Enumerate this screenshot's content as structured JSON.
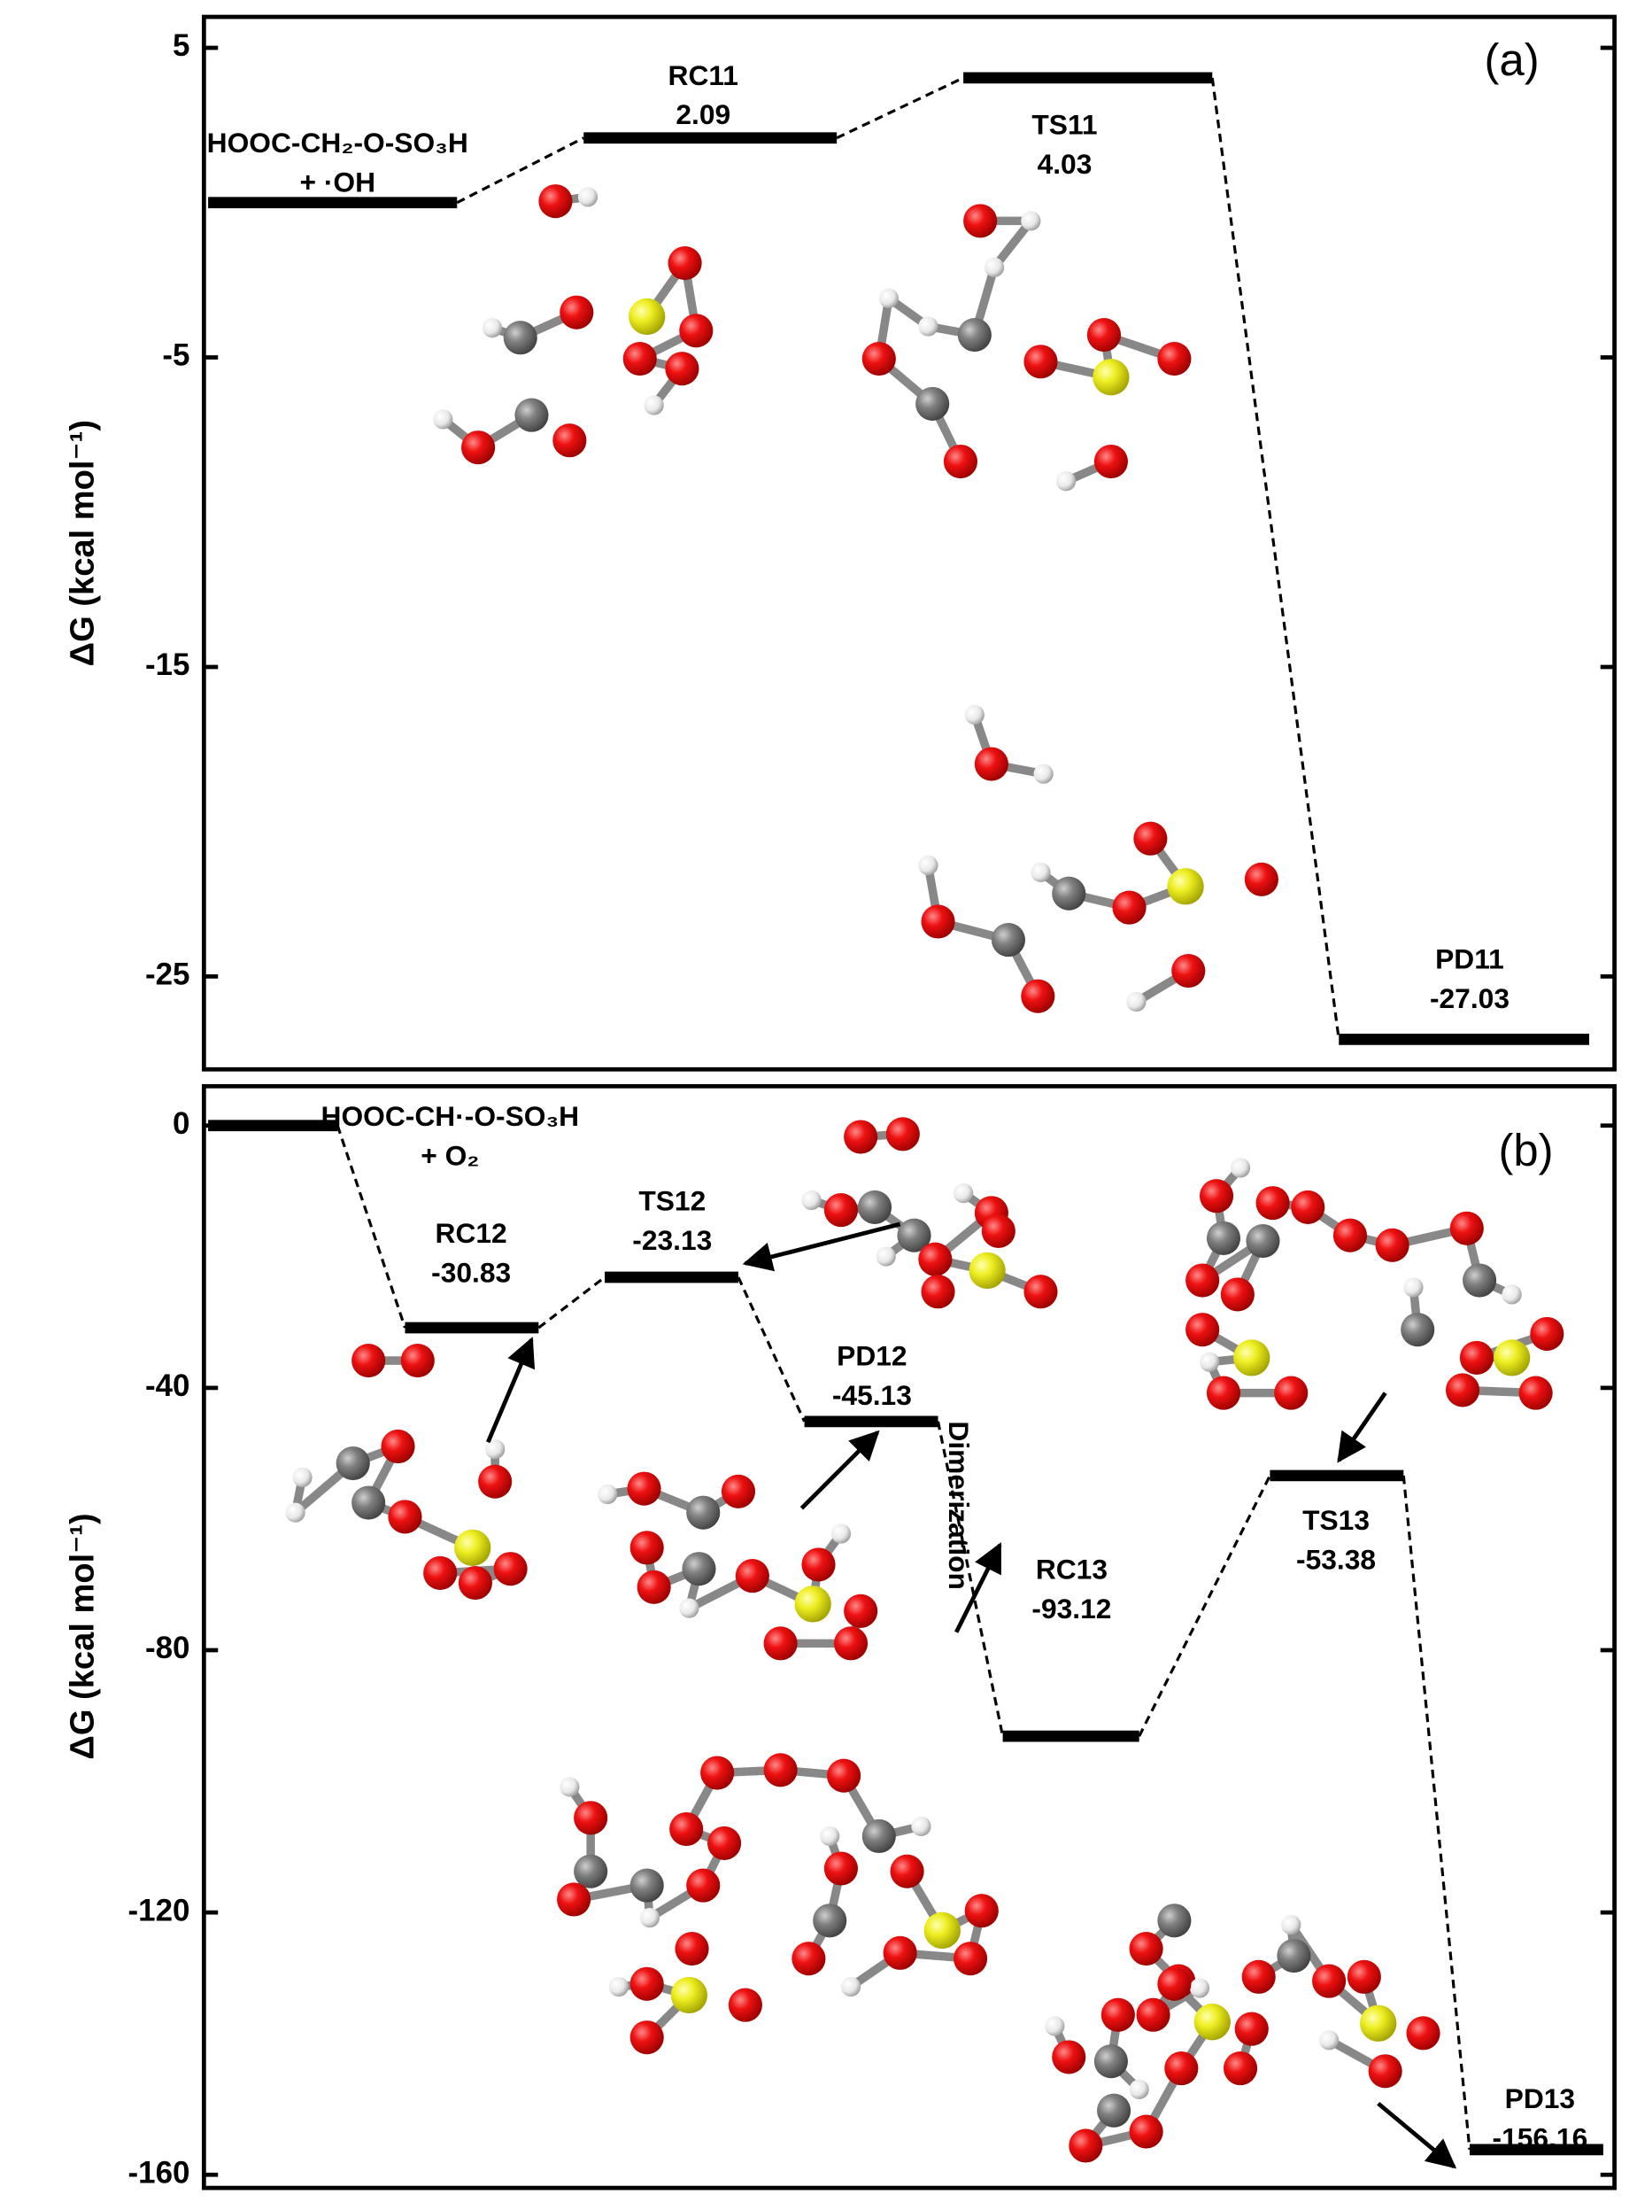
{
  "chart_data": [
    {
      "type": "energy-profile",
      "panel_label": "(a)",
      "y_label": "ΔG (kcal mol⁻¹)",
      "categories": [
        [
          "HOOC-CH₂-O-SO₃H",
          "+ ·OH"
        ],
        "RC11",
        "TS11",
        "PD11"
      ],
      "values": [
        0,
        2.09,
        4.03,
        -27.03
      ],
      "value_labels": [
        null,
        "2.09",
        "4.03",
        "-27.03"
      ],
      "ylim": [
        -28,
        6
      ],
      "yticks": [
        -25,
        -15,
        -5,
        5
      ],
      "color": "#000000"
    },
    {
      "type": "energy-profile",
      "panel_label": "(b)",
      "y_label": "ΔG (kcal mol⁻¹)",
      "categories": [
        [
          "HOOC-CH·-O-SO₃H",
          "+ O₂"
        ],
        "RC12",
        "TS12",
        "PD12",
        "RC13",
        "TS13",
        "PD13"
      ],
      "values": [
        0,
        -30.83,
        -23.13,
        -45.13,
        -93.12,
        -53.38,
        -156.16
      ],
      "value_labels": [
        null,
        "-30.83",
        "-23.13",
        "-45.13",
        "-93.12",
        "-53.38",
        "-156.16"
      ],
      "annotations": [
        "Dimerization"
      ],
      "ylim": [
        -162,
        6
      ],
      "yticks": [
        0,
        -40,
        -80,
        -120,
        -160
      ],
      "color": "#000000"
    }
  ]
}
